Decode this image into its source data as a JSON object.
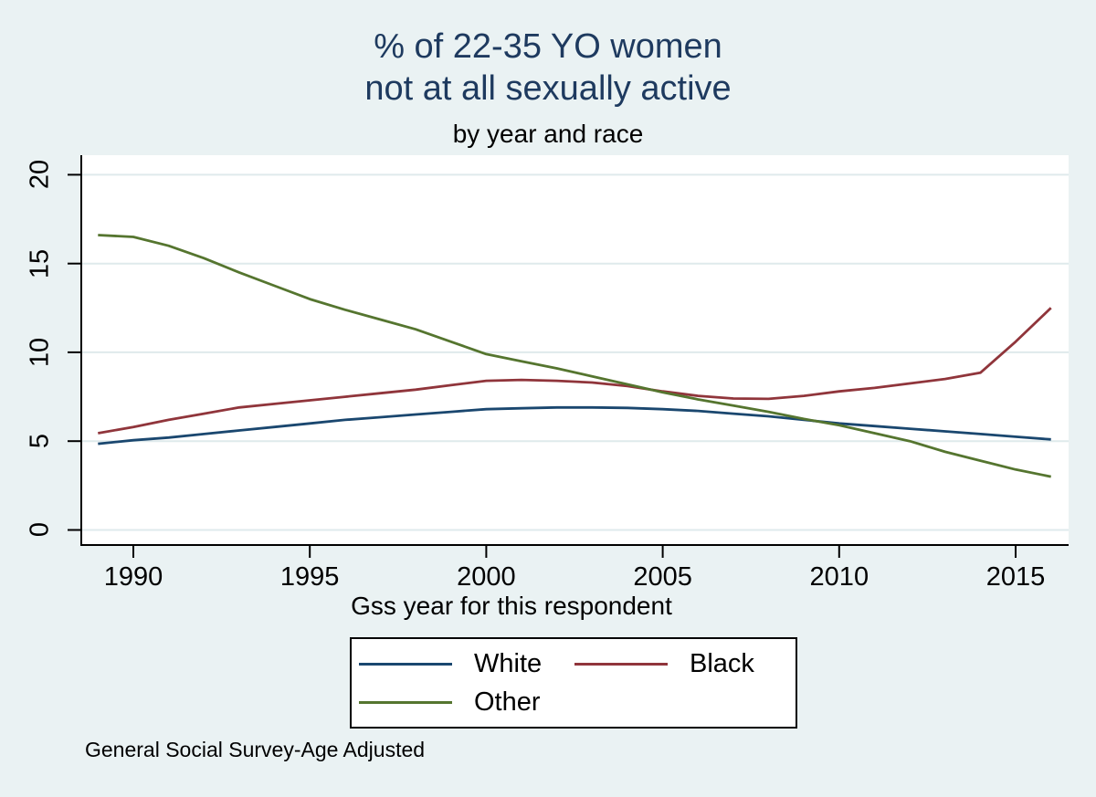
{
  "title": {
    "line1": "% of 22-35 YO women",
    "line2": "not at all sexually active",
    "subtitle": "by year and race",
    "color": "#1e3a5f"
  },
  "note": "General Social Survey-Age Adjusted",
  "chart_data": {
    "type": "line",
    "title": "% of 22-35 YO women not at all sexually active",
    "subtitle": "by year and race",
    "xlabel": "Gss year for this respondent",
    "ylabel": "",
    "grid": true,
    "legend_position": "bottom",
    "x_domain": [
      1988.5,
      2016.5
    ],
    "y_domain": [
      -0.9,
      21.1
    ],
    "x_ticks": [
      1990,
      1995,
      2000,
      2005,
      2010,
      2015
    ],
    "y_ticks": [
      0,
      5,
      10,
      15,
      20
    ],
    "colors": {
      "background": "#eaf2f3",
      "plot_background": "#ffffff",
      "gridline": "#dfeaec",
      "axis": "#000000"
    },
    "x": [
      1989,
      1990,
      1991,
      1992,
      1993,
      1994,
      1995,
      1996,
      1997,
      1998,
      1999,
      2000,
      2001,
      2002,
      2003,
      2004,
      2005,
      2006,
      2007,
      2008,
      2009,
      2010,
      2011,
      2012,
      2013,
      2014,
      2015,
      2016
    ],
    "series": [
      {
        "name": "White",
        "color": "#1a476f",
        "values": [
          4.85,
          5.05,
          5.2,
          5.4,
          5.6,
          5.8,
          6.0,
          6.2,
          6.35,
          6.5,
          6.65,
          6.8,
          6.85,
          6.9,
          6.9,
          6.87,
          6.8,
          6.7,
          6.55,
          6.4,
          6.2,
          6.0,
          5.85,
          5.7,
          5.55,
          5.4,
          5.25,
          5.1
        ]
      },
      {
        "name": "Black",
        "color": "#90353b",
        "values": [
          5.45,
          5.8,
          6.2,
          6.55,
          6.9,
          7.1,
          7.3,
          7.5,
          7.7,
          7.9,
          8.15,
          8.4,
          8.45,
          8.4,
          8.3,
          8.1,
          7.8,
          7.55,
          7.4,
          7.38,
          7.55,
          7.8,
          8.0,
          8.25,
          8.5,
          8.85,
          10.6,
          12.5
        ]
      },
      {
        "name": "Other",
        "color": "#55752f",
        "values": [
          16.6,
          16.5,
          16.0,
          15.3,
          14.5,
          13.75,
          13.0,
          12.4,
          11.85,
          11.3,
          10.6,
          9.9,
          9.5,
          9.1,
          8.65,
          8.2,
          7.75,
          7.35,
          7.0,
          6.65,
          6.25,
          5.9,
          5.45,
          5.0,
          4.4,
          3.9,
          3.4,
          3.0
        ]
      }
    ]
  }
}
